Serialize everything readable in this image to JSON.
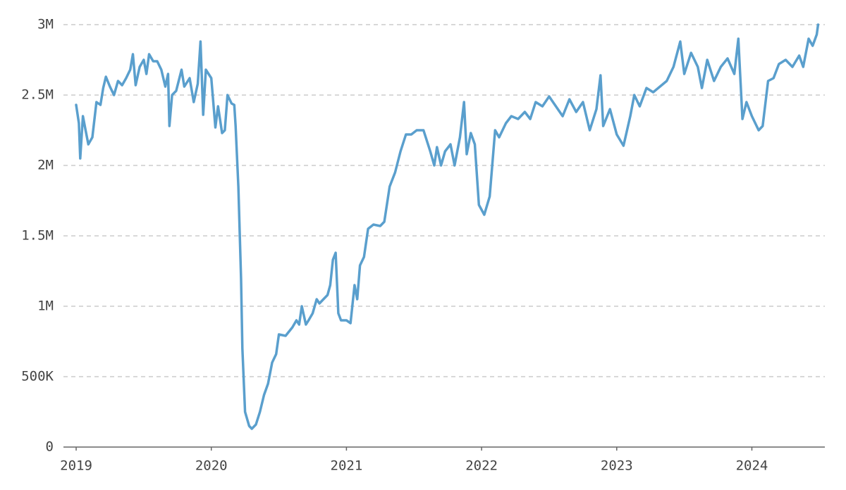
{
  "chart_data": {
    "type": "line",
    "color": "#5a9fcd",
    "grid": true,
    "xlim": [
      2018.906,
      2024.54
    ],
    "xticks": [
      2019,
      2020,
      2021,
      2022,
      2023,
      2024
    ],
    "ylim": [
      0,
      3000000
    ],
    "yticks": [
      0,
      {
        "value": 500000,
        "label": "500K"
      },
      {
        "value": 1000000,
        "label": "1M"
      },
      {
        "value": 1500000,
        "label": "1.5M"
      },
      {
        "value": 2000000,
        "label": "2M"
      },
      {
        "value": 2500000,
        "label": "2.5M"
      },
      {
        "value": 3000000,
        "label": "3M"
      }
    ],
    "x": [
      2019.0,
      2019.02,
      2019.03,
      2019.05,
      2019.07,
      2019.09,
      2019.12,
      2019.15,
      2019.18,
      2019.2,
      2019.22,
      2019.25,
      2019.28,
      2019.31,
      2019.34,
      2019.37,
      2019.4,
      2019.42,
      2019.44,
      2019.47,
      2019.5,
      2019.52,
      2019.54,
      2019.57,
      2019.6,
      2019.63,
      2019.66,
      2019.68,
      2019.69,
      2019.71,
      2019.74,
      2019.78,
      2019.8,
      2019.84,
      2019.87,
      2019.9,
      2019.92,
      2019.94,
      2019.96,
      2020.0,
      2020.03,
      2020.05,
      2020.08,
      2020.1,
      2020.12,
      2020.15,
      2020.17,
      2020.18,
      2020.2,
      2020.22,
      2020.23,
      2020.25,
      2020.28,
      2020.3,
      2020.33,
      2020.36,
      2020.39,
      2020.42,
      2020.45,
      2020.48,
      2020.5,
      2020.55,
      2020.6,
      2020.63,
      2020.65,
      2020.67,
      2020.7,
      2020.72,
      2020.75,
      2020.78,
      2020.8,
      2020.83,
      2020.86,
      2020.88,
      2020.9,
      2020.92,
      2020.94,
      2020.96,
      2021.0,
      2021.03,
      2021.06,
      2021.08,
      2021.1,
      2021.13,
      2021.16,
      2021.2,
      2021.25,
      2021.28,
      2021.32,
      2021.36,
      2021.4,
      2021.44,
      2021.48,
      2021.52,
      2021.57,
      2021.62,
      2021.65,
      2021.67,
      2021.7,
      2021.73,
      2021.77,
      2021.8,
      2021.84,
      2021.87,
      2021.89,
      2021.92,
      2021.95,
      2021.98,
      2022.02,
      2022.06,
      2022.1,
      2022.13,
      2022.18,
      2022.22,
      2022.27,
      2022.32,
      2022.36,
      2022.4,
      2022.45,
      2022.5,
      2022.55,
      2022.6,
      2022.65,
      2022.7,
      2022.75,
      2022.8,
      2022.85,
      2022.88,
      2022.9,
      2022.95,
      2023.0,
      2023.05,
      2023.1,
      2023.13,
      2023.17,
      2023.22,
      2023.27,
      2023.32,
      2023.37,
      2023.42,
      2023.47,
      2023.5,
      2023.55,
      2023.6,
      2023.63,
      2023.67,
      2023.72,
      2023.77,
      2023.82,
      2023.87,
      2023.9,
      2023.93,
      2023.96,
      2024.0,
      2024.05,
      2024.08,
      2024.12,
      2024.16,
      2024.2,
      2024.25,
      2024.3,
      2024.35,
      2024.38,
      2024.42,
      2024.45,
      2024.48,
      2024.49
    ],
    "values": [
      2430000,
      2300000,
      2050000,
      2350000,
      2250000,
      2150000,
      2200000,
      2450000,
      2430000,
      2550000,
      2630000,
      2560000,
      2500000,
      2600000,
      2570000,
      2620000,
      2680000,
      2790000,
      2570000,
      2700000,
      2750000,
      2650000,
      2790000,
      2740000,
      2740000,
      2680000,
      2560000,
      2650000,
      2280000,
      2500000,
      2530000,
      2680000,
      2560000,
      2620000,
      2450000,
      2580000,
      2880000,
      2360000,
      2680000,
      2620000,
      2270000,
      2420000,
      2230000,
      2250000,
      2500000,
      2440000,
      2430000,
      2280000,
      1850000,
      1200000,
      700000,
      250000,
      150000,
      130000,
      160000,
      250000,
      370000,
      450000,
      600000,
      660000,
      800000,
      790000,
      850000,
      900000,
      870000,
      1000000,
      870000,
      900000,
      950000,
      1050000,
      1020000,
      1050000,
      1080000,
      1150000,
      1330000,
      1380000,
      950000,
      900000,
      900000,
      880000,
      1150000,
      1050000,
      1290000,
      1350000,
      1550000,
      1580000,
      1570000,
      1600000,
      1850000,
      1950000,
      2100000,
      2220000,
      2220000,
      2250000,
      2250000,
      2100000,
      2000000,
      2130000,
      2000000,
      2100000,
      2150000,
      2000000,
      2200000,
      2450000,
      2080000,
      2230000,
      2150000,
      1720000,
      1650000,
      1780000,
      2250000,
      2200000,
      2300000,
      2350000,
      2330000,
      2380000,
      2330000,
      2450000,
      2420000,
      2490000,
      2420000,
      2350000,
      2470000,
      2380000,
      2450000,
      2250000,
      2400000,
      2640000,
      2280000,
      2400000,
      2220000,
      2140000,
      2350000,
      2500000,
      2420000,
      2550000,
      2520000,
      2560000,
      2600000,
      2700000,
      2880000,
      2650000,
      2800000,
      2700000,
      2550000,
      2750000,
      2600000,
      2700000,
      2760000,
      2650000,
      2900000,
      2330000,
      2450000,
      2350000,
      2250000,
      2280000,
      2600000,
      2620000,
      2720000,
      2750000,
      2700000,
      2780000,
      2700000,
      2900000,
      2850000,
      2930000,
      3000000
    ]
  }
}
